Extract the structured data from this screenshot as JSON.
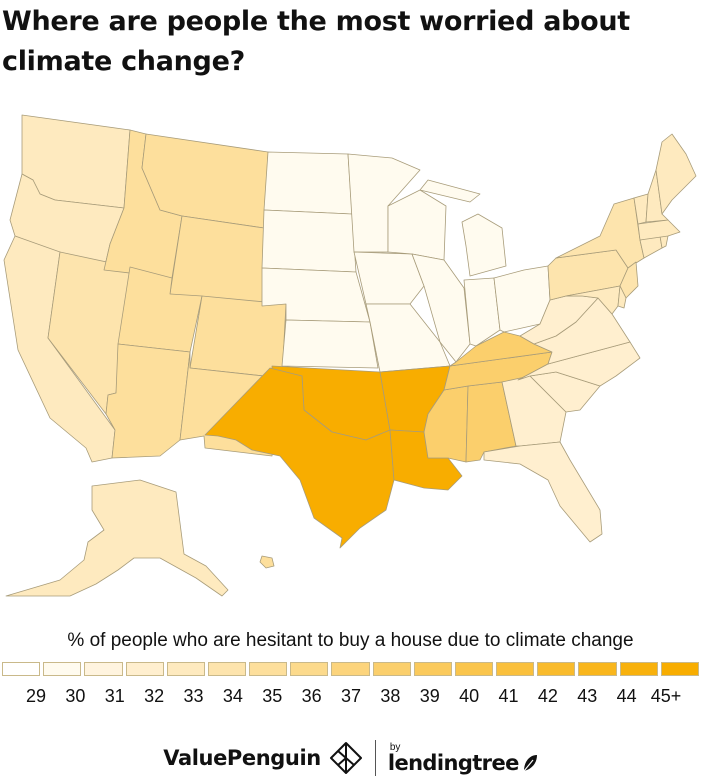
{
  "title": "Where are people the most worried about climate change?",
  "legend": {
    "title": "% of people who are hesitant to buy a house due to climate change",
    "labels": [
      "29",
      "30",
      "31",
      "32",
      "33",
      "34",
      "35",
      "36",
      "37",
      "38",
      "39",
      "40",
      "41",
      "42",
      "43",
      "44",
      "45+"
    ],
    "colors": [
      "#ffffff",
      "#fffbef",
      "#fff4df",
      "#ffefcf",
      "#feeabf",
      "#fde4ad",
      "#fddf9c",
      "#fcda8c",
      "#fcd47c",
      "#fbcf6c",
      "#fbca5c",
      "#fac54c",
      "#fac03c",
      "#f9bb2c",
      "#f9b61c",
      "#f8b10c",
      "#f8ad00"
    ]
  },
  "chart_data": {
    "type": "choropleth",
    "unit": "% of people who are hesitant to buy a house due to climate change",
    "regions": [
      {
        "region": "Washington",
        "value": 33
      },
      {
        "region": "Oregon",
        "value": 33
      },
      {
        "region": "California",
        "value": 33
      },
      {
        "region": "Nevada",
        "value": 34
      },
      {
        "region": "Idaho",
        "value": 35
      },
      {
        "region": "Montana",
        "value": 35
      },
      {
        "region": "Wyoming",
        "value": 35
      },
      {
        "region": "Utah",
        "value": 35
      },
      {
        "region": "Colorado",
        "value": 35
      },
      {
        "region": "Arizona",
        "value": 35
      },
      {
        "region": "New Mexico",
        "value": 35
      },
      {
        "region": "North Dakota",
        "value": 30
      },
      {
        "region": "South Dakota",
        "value": 30
      },
      {
        "region": "Nebraska",
        "value": 30
      },
      {
        "region": "Kansas",
        "value": 30
      },
      {
        "region": "Minnesota",
        "value": 30
      },
      {
        "region": "Iowa",
        "value": 30
      },
      {
        "region": "Missouri",
        "value": 30
      },
      {
        "region": "Wisconsin",
        "value": 30
      },
      {
        "region": "Michigan",
        "value": 30
      },
      {
        "region": "Illinois",
        "value": 30
      },
      {
        "region": "Indiana",
        "value": 30
      },
      {
        "region": "Ohio",
        "value": 30
      },
      {
        "region": "Texas",
        "value": 45
      },
      {
        "region": "Oklahoma",
        "value": 45
      },
      {
        "region": "Arkansas",
        "value": 45
      },
      {
        "region": "Louisiana",
        "value": 45
      },
      {
        "region": "Mississippi",
        "value": 38
      },
      {
        "region": "Alabama",
        "value": 38
      },
      {
        "region": "Tennessee",
        "value": 38
      },
      {
        "region": "Kentucky",
        "value": 38
      },
      {
        "region": "Georgia",
        "value": 32
      },
      {
        "region": "Florida",
        "value": 32
      },
      {
        "region": "South Carolina",
        "value": 32
      },
      {
        "region": "North Carolina",
        "value": 32
      },
      {
        "region": "Virginia",
        "value": 32
      },
      {
        "region": "West Virginia",
        "value": 32
      },
      {
        "region": "Pennsylvania",
        "value": 34
      },
      {
        "region": "New York",
        "value": 34
      },
      {
        "region": "New Jersey",
        "value": 34
      },
      {
        "region": "Maryland",
        "value": 33
      },
      {
        "region": "Delaware",
        "value": 33
      },
      {
        "region": "Connecticut",
        "value": 33
      },
      {
        "region": "Rhode Island",
        "value": 33
      },
      {
        "region": "Massachusetts",
        "value": 33
      },
      {
        "region": "Vermont",
        "value": 33
      },
      {
        "region": "New Hampshire",
        "value": 33
      },
      {
        "region": "Maine",
        "value": 33
      },
      {
        "region": "Alaska",
        "value": 33
      },
      {
        "region": "Hawaii",
        "value": 35
      }
    ]
  },
  "footer": {
    "brand_left": "ValuePenguin",
    "by": "by",
    "brand_right": "lendingtree"
  }
}
